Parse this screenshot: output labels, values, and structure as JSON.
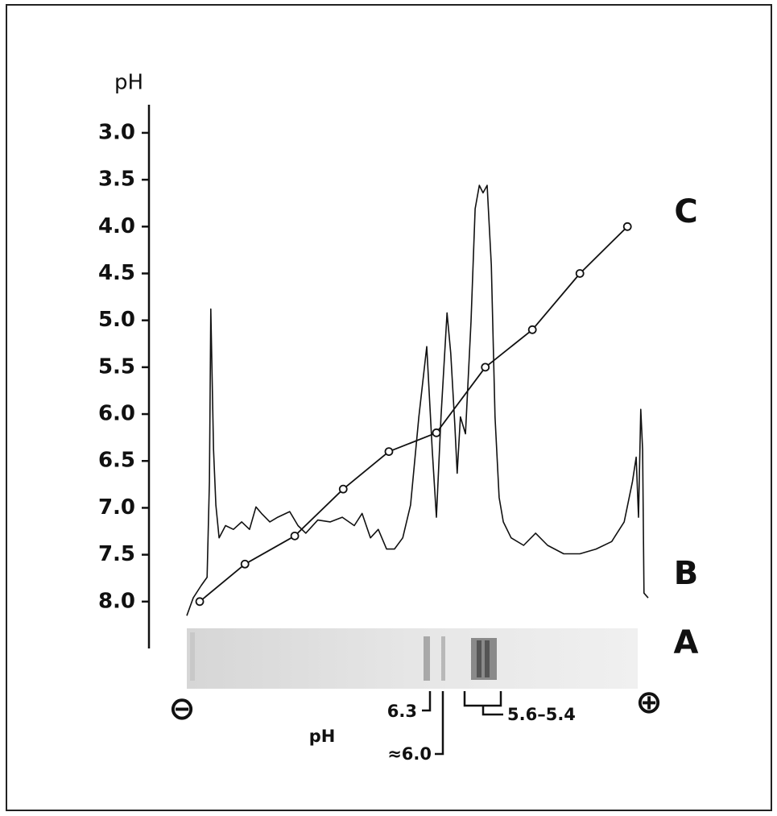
{
  "chart_data": {
    "type": "line",
    "y_label": "pH",
    "ylim": [
      8.5,
      2.7
    ],
    "yticks": [
      {
        "value": 3,
        "label": "3.0"
      },
      3.5,
      {
        "value": 4,
        "label": "4.0"
      },
      4.5,
      {
        "value": 5,
        "label": "5.0"
      },
      5.5,
      {
        "value": 6,
        "label": "6.0"
      },
      6.5,
      {
        "value": 7,
        "label": "7.0"
      },
      7.5,
      {
        "value": 8,
        "label": "8.0"
      }
    ],
    "xlim": [
      0,
      100
    ],
    "series": [
      {
        "name": "C",
        "color": "#111111",
        "markers": true,
        "x": [
          2.8,
          12.6,
          23.4,
          33.9,
          43.8,
          54.1,
          64.7,
          74.9,
          85.2,
          95.5
        ],
        "values": [
          8.0,
          7.6,
          7.3,
          6.8,
          6.4,
          6.2,
          5.5,
          5.1,
          4.5,
          4.0
        ]
      },
      {
        "name": "B",
        "color": "#111111",
        "markers": false,
        "x": [
          0,
          1.4,
          3.1,
          4.4,
          4.9,
          5.2,
          5.8,
          6.3,
          7.0,
          8.4,
          10.1,
          11.9,
          13.6,
          15.0,
          16.2,
          18.0,
          19.7,
          22.3,
          24.1,
          25.8,
          28.4,
          31.1,
          33.7,
          36.3,
          38.0,
          39.8,
          41.5,
          43.3,
          45.0,
          46.8,
          48.5,
          50.3,
          52.0,
          53.2,
          54.1,
          55.1,
          56.4,
          57.2,
          58.1,
          58.6,
          59.3,
          60.4,
          61.6,
          62.5,
          63.4,
          64.2,
          65.1,
          66.0,
          66.8,
          67.7,
          68.6,
          70.3,
          73.0,
          75.6,
          78.2,
          81.7,
          85.2,
          88.7,
          92.1,
          94.8,
          96.6,
          97.4,
          97.9,
          98.4,
          98.8,
          99.1,
          100
        ],
        "values": [
          8.15,
          7.96,
          7.83,
          7.74,
          6.72,
          4.88,
          6.38,
          6.97,
          7.32,
          7.19,
          7.23,
          7.15,
          7.23,
          6.99,
          7.06,
          7.15,
          7.1,
          7.04,
          7.19,
          7.27,
          7.13,
          7.15,
          7.1,
          7.19,
          7.06,
          7.32,
          7.23,
          7.44,
          7.44,
          7.32,
          6.97,
          6.03,
          5.28,
          6.38,
          7.1,
          6.03,
          4.92,
          5.35,
          6.12,
          6.63,
          6.03,
          6.21,
          5.01,
          3.81,
          3.56,
          3.64,
          3.56,
          4.41,
          6.03,
          6.89,
          7.15,
          7.32,
          7.4,
          7.27,
          7.4,
          7.49,
          7.49,
          7.44,
          7.36,
          7.15,
          6.72,
          6.46,
          7.1,
          5.95,
          6.38,
          7.91,
          7.96
        ]
      }
    ],
    "gel_label": "A",
    "cathode": "⊖",
    "anode": "⊕",
    "annotations": {
      "ph_label": "pH",
      "band1": "6.3",
      "band2": "≈6.0",
      "band3": "5.6–5.4"
    }
  }
}
